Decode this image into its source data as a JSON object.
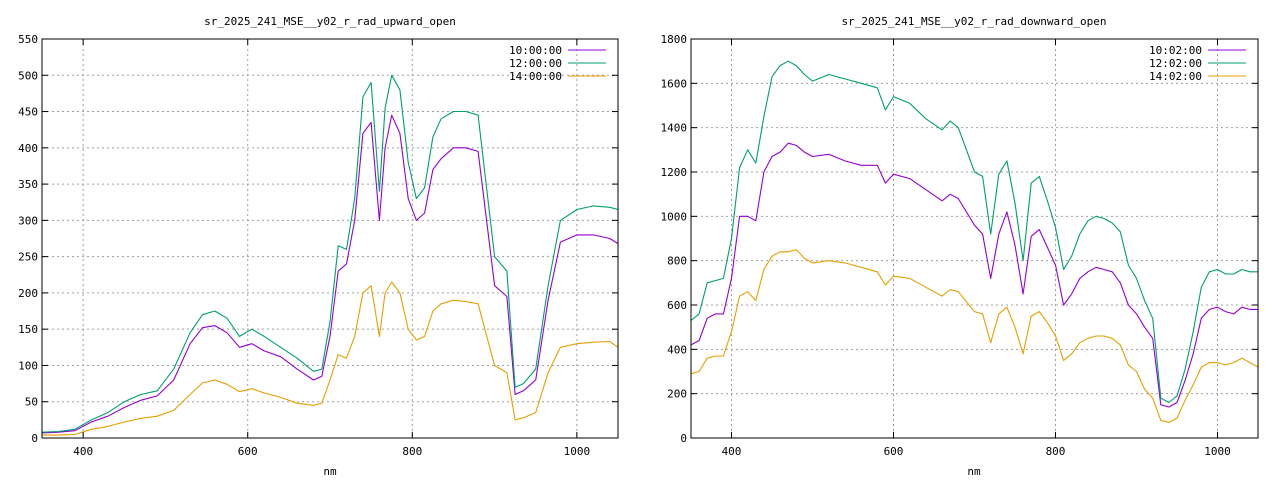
{
  "chart_data": [
    {
      "type": "line",
      "title": "sr_2025_241_MSE__y02_r_rad_upward_open",
      "xlabel": "nm",
      "ylabel": "",
      "xlim": [
        350,
        1050
      ],
      "ylim": [
        0,
        550
      ],
      "xticks": [
        400,
        600,
        800,
        1000
      ],
      "yticks": [
        0,
        50,
        100,
        150,
        200,
        250,
        300,
        350,
        400,
        450,
        500,
        550
      ],
      "grid": true,
      "legend_position": "top-right",
      "x": [
        350,
        370,
        390,
        410,
        430,
        450,
        470,
        490,
        510,
        530,
        545,
        560,
        575,
        590,
        605,
        620,
        640,
        660,
        680,
        690,
        700,
        710,
        720,
        730,
        740,
        750,
        760,
        767,
        775,
        785,
        795,
        805,
        815,
        825,
        835,
        850,
        865,
        880,
        900,
        915,
        925,
        935,
        950,
        965,
        980,
        1000,
        1020,
        1040,
        1050
      ],
      "series": [
        {
          "name": "10:00:00",
          "color": "#9400d3",
          "values": [
            7,
            8,
            10,
            22,
            30,
            42,
            52,
            58,
            80,
            130,
            152,
            155,
            145,
            125,
            130,
            120,
            112,
            95,
            80,
            85,
            140,
            230,
            240,
            300,
            420,
            435,
            300,
            400,
            445,
            420,
            330,
            300,
            310,
            370,
            385,
            400,
            400,
            395,
            210,
            195,
            60,
            65,
            80,
            190,
            270,
            280,
            280,
            275,
            268
          ]
        },
        {
          "name": "12:00:00",
          "color": "#009e73",
          "values": [
            8,
            9,
            12,
            25,
            35,
            50,
            60,
            65,
            95,
            145,
            170,
            175,
            165,
            140,
            150,
            140,
            125,
            110,
            92,
            95,
            160,
            265,
            260,
            330,
            470,
            490,
            340,
            455,
            500,
            480,
            380,
            330,
            345,
            415,
            440,
            450,
            450,
            445,
            250,
            230,
            70,
            75,
            95,
            210,
            300,
            315,
            320,
            318,
            315
          ]
        },
        {
          "name": "14:00:00",
          "color": "#e69f00",
          "values": [
            4,
            4,
            5,
            12,
            16,
            22,
            27,
            30,
            38,
            60,
            76,
            80,
            74,
            64,
            68,
            62,
            56,
            48,
            45,
            48,
            80,
            115,
            110,
            140,
            200,
            210,
            140,
            200,
            215,
            200,
            150,
            135,
            140,
            175,
            185,
            190,
            188,
            185,
            100,
            90,
            25,
            28,
            35,
            90,
            125,
            130,
            132,
            133,
            125
          ]
        }
      ]
    },
    {
      "type": "line",
      "title": "sr_2025_241_MSE__y02_r_rad_downward_open",
      "xlabel": "nm",
      "ylabel": "",
      "xlim": [
        350,
        1050
      ],
      "ylim": [
        0,
        1800
      ],
      "xticks": [
        400,
        600,
        800,
        1000
      ],
      "yticks": [
        0,
        200,
        400,
        600,
        800,
        1000,
        1200,
        1400,
        1600,
        1800
      ],
      "grid": true,
      "legend_position": "top-right",
      "x": [
        350,
        360,
        370,
        380,
        390,
        400,
        410,
        420,
        430,
        440,
        450,
        460,
        470,
        480,
        490,
        500,
        520,
        540,
        560,
        580,
        590,
        600,
        620,
        640,
        660,
        670,
        680,
        700,
        710,
        720,
        730,
        740,
        750,
        760,
        770,
        780,
        790,
        800,
        810,
        820,
        830,
        840,
        850,
        860,
        870,
        880,
        890,
        900,
        910,
        920,
        930,
        940,
        950,
        960,
        970,
        980,
        990,
        1000,
        1010,
        1020,
        1030,
        1040,
        1050
      ],
      "series": [
        {
          "name": "10:02:00",
          "color": "#9400d3",
          "values": [
            420,
            440,
            540,
            560,
            560,
            720,
            1000,
            1000,
            980,
            1200,
            1270,
            1290,
            1330,
            1320,
            1290,
            1270,
            1280,
            1250,
            1230,
            1230,
            1150,
            1190,
            1170,
            1120,
            1070,
            1100,
            1080,
            960,
            920,
            720,
            920,
            1020,
            870,
            650,
            910,
            940,
            860,
            780,
            600,
            650,
            720,
            750,
            770,
            760,
            750,
            700,
            600,
            560,
            500,
            450,
            150,
            140,
            160,
            260,
            380,
            540,
            580,
            590,
            570,
            560,
            590,
            580,
            580
          ]
        },
        {
          "name": "12:02:00",
          "color": "#009e73",
          "values": [
            530,
            560,
            700,
            710,
            720,
            900,
            1220,
            1300,
            1240,
            1450,
            1630,
            1680,
            1700,
            1680,
            1640,
            1610,
            1640,
            1620,
            1600,
            1580,
            1480,
            1540,
            1510,
            1440,
            1390,
            1430,
            1400,
            1200,
            1180,
            920,
            1190,
            1250,
            1060,
            800,
            1150,
            1180,
            1070,
            950,
            760,
            820,
            920,
            980,
            1000,
            990,
            970,
            930,
            780,
            720,
            620,
            540,
            180,
            160,
            190,
            310,
            480,
            680,
            750,
            760,
            740,
            740,
            760,
            750,
            750
          ]
        },
        {
          "name": "14:02:00",
          "color": "#e69f00",
          "values": [
            290,
            300,
            360,
            370,
            370,
            480,
            640,
            660,
            620,
            760,
            820,
            840,
            840,
            850,
            810,
            790,
            800,
            790,
            770,
            750,
            690,
            730,
            720,
            680,
            640,
            670,
            660,
            570,
            560,
            430,
            560,
            590,
            500,
            380,
            550,
            570,
            520,
            460,
            350,
            380,
            430,
            450,
            460,
            460,
            450,
            420,
            330,
            300,
            220,
            180,
            80,
            70,
            90,
            170,
            240,
            320,
            340,
            340,
            330,
            340,
            360,
            340,
            320
          ]
        }
      ]
    }
  ]
}
